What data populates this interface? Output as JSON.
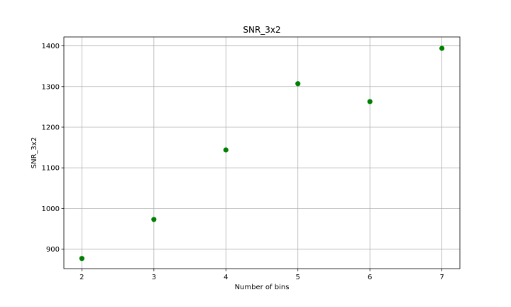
{
  "chart_data": {
    "type": "scatter",
    "title": "SNR_3x2",
    "xlabel": "Number of bins",
    "ylabel": "SNR_3x2",
    "xlim": [
      1.75,
      7.25
    ],
    "ylim": [
      852,
      1422
    ],
    "xticks": [
      2,
      3,
      4,
      5,
      6,
      7
    ],
    "yticks": [
      900,
      1000,
      1100,
      1200,
      1300,
      1400
    ],
    "grid": true,
    "marker_color": "#008000",
    "series": [
      {
        "x": [
          2,
          3,
          4,
          5,
          6,
          7
        ],
        "values": [
          877,
          973,
          1144,
          1307,
          1263,
          1394
        ]
      }
    ]
  }
}
